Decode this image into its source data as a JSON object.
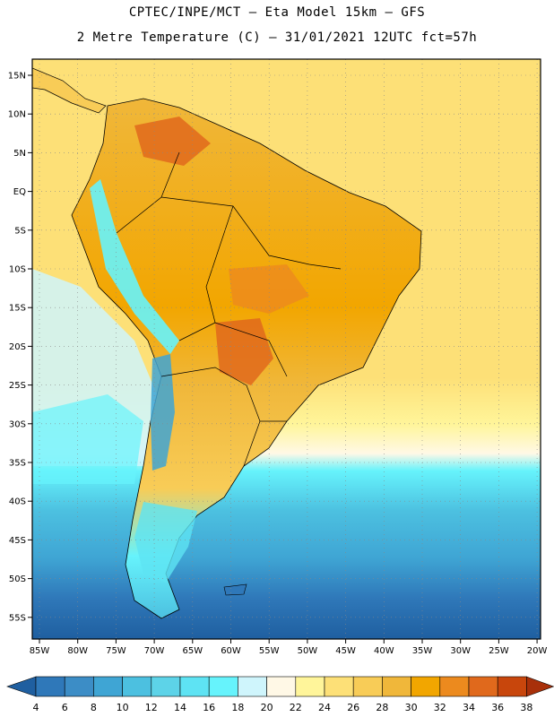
{
  "title_line1": "CPTEC/INPE/MCT  –   Eta Model 15km  –  GFS",
  "title_line2": "2 Metre Temperature (C) – 31/01/2021 12UTC fct=57h",
  "lat_labels": [
    "15N",
    "10N",
    "5N",
    "EQ",
    "5S",
    "10S",
    "15S",
    "20S",
    "25S",
    "30S",
    "35S",
    "40S",
    "45S",
    "50S",
    "55S"
  ],
  "lon_labels": [
    "85W",
    "80W",
    "75W",
    "70W",
    "65W",
    "60W",
    "55W",
    "50W",
    "45W",
    "40W",
    "35W",
    "30W",
    "25W",
    "20W"
  ],
  "colorbar": {
    "labels": [
      "4",
      "6",
      "8",
      "10",
      "12",
      "14",
      "16",
      "18",
      "20",
      "22",
      "24",
      "26",
      "28",
      "30",
      "32",
      "34",
      "36",
      "38"
    ],
    "colors": [
      "#1f5fa0",
      "#2f78b9",
      "#3c8dc6",
      "#3fa5d4",
      "#4cc0e0",
      "#5dd3e8",
      "#5ee3f3",
      "#66f3fc",
      "#cff5fc",
      "#fff8e6",
      "#fff59a",
      "#fde077",
      "#f8cc57",
      "#f0b73a",
      "#f2a600",
      "#ec8a1e",
      "#e0691c",
      "#c8460c",
      "#a8300a"
    ]
  }
}
